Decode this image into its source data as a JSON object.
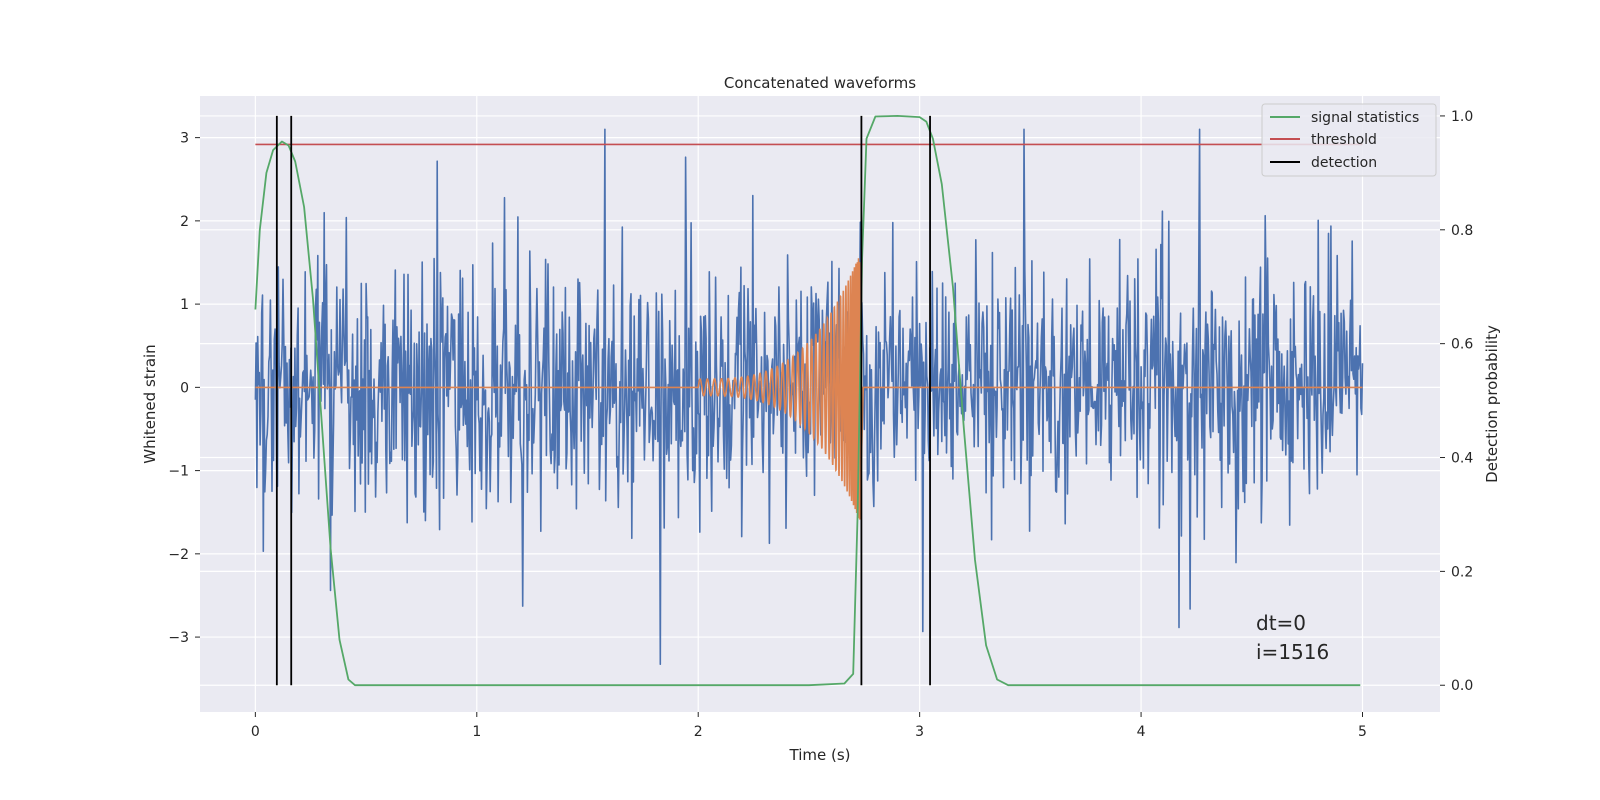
{
  "chart_data": {
    "type": "line",
    "title": "Concatenated waveforms",
    "xlabel": "Time (s)",
    "ylabel": "Whitened strain",
    "y2label": "Detection probability",
    "xlim": [
      -0.25,
      5.35
    ],
    "ylim": [
      -3.9,
      3.5
    ],
    "y2lim": [
      -0.047,
      1.035
    ],
    "xticks": [
      0,
      1,
      2,
      3,
      4,
      5
    ],
    "yticks": [
      -3,
      -2,
      -1,
      0,
      1,
      2,
      3
    ],
    "y2ticks": [
      0.0,
      0.2,
      0.4,
      0.6,
      0.8,
      1.0
    ],
    "xtick_labels": [
      "0",
      "1",
      "2",
      "3",
      "4",
      "5"
    ],
    "ytick_labels": [
      "−3",
      "−2",
      "−1",
      "0",
      "1",
      "2",
      "3"
    ],
    "y2tick_labels": [
      "0.0",
      "0.2",
      "0.4",
      "0.6",
      "0.8",
      "1.0"
    ],
    "grid": true,
    "legend_position": "top-right",
    "colors": {
      "strain": "#4c72b0",
      "template": "#dd8452",
      "signal_statistics": "#55a868",
      "threshold": "#c44e52",
      "detection": "#000000",
      "background": "#eaeaf2",
      "grid": "#ffffff"
    },
    "series": [
      {
        "name": "signal statistics",
        "axis": "right",
        "x": [
          0.0,
          0.02,
          0.05,
          0.08,
          0.12,
          0.15,
          0.18,
          0.22,
          0.26,
          0.3,
          0.34,
          0.38,
          0.42,
          0.45,
          0.5,
          1.0,
          1.5,
          2.0,
          2.5,
          2.66,
          2.7,
          2.72,
          2.74,
          2.76,
          2.8,
          2.9,
          3.0,
          3.03,
          3.06,
          3.1,
          3.15,
          3.2,
          3.25,
          3.3,
          3.35,
          3.4,
          4.0,
          4.5,
          4.99
        ],
        "values": [
          0.66,
          0.8,
          0.9,
          0.94,
          0.955,
          0.948,
          0.92,
          0.84,
          0.68,
          0.46,
          0.24,
          0.08,
          0.01,
          0.0,
          0.0,
          0.0,
          0.0,
          0.0,
          0.0,
          0.003,
          0.02,
          0.3,
          0.75,
          0.96,
          0.999,
          1.0,
          0.998,
          0.99,
          0.96,
          0.88,
          0.7,
          0.45,
          0.22,
          0.07,
          0.01,
          0.0,
          0.0,
          0.0,
          0.0
        ]
      },
      {
        "name": "threshold",
        "axis": "right",
        "x": [
          0.0,
          5.0
        ],
        "values": [
          0.95,
          0.95
        ]
      },
      {
        "name": "detection",
        "axis": "right",
        "segments_x": [
          0.097,
          0.162,
          2.737,
          3.047
        ],
        "values": [
          0.0,
          1.0
        ]
      },
      {
        "axis": "left",
        "x_range": [
          0.0,
          5.0
        ],
        "amplitude_envelope": [
          -3.6,
          3.1
        ]
      },
      {
        "axis": "left",
        "x_range": [
          2.0,
          2.73
        ],
        "amplitude_range": [
          0.1,
          1.6
        ]
      }
    ],
    "annotations": [
      "dt=0",
      "i=1516"
    ]
  }
}
